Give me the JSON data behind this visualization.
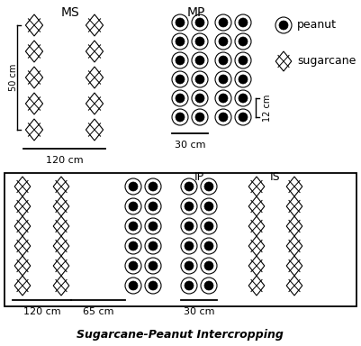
{
  "title": "Sugarcane-Peanut Intercropping",
  "legend_peanut_label": "peanut",
  "legend_sugarcane_label": "sugarcane",
  "ms_label": "MS",
  "mp_label": "MP",
  "ip_label": "IP",
  "is_label": "IS",
  "top_dim1": "120 cm",
  "top_dim2": "30 cm",
  "top_dim3": "50 cm",
  "top_dim4": "12 cm",
  "bot_dim1": "120 cm",
  "bot_dim2": "65 cm",
  "bot_dim3": "30 cm",
  "bg_color": "#ffffff",
  "symbol_color": "#000000"
}
